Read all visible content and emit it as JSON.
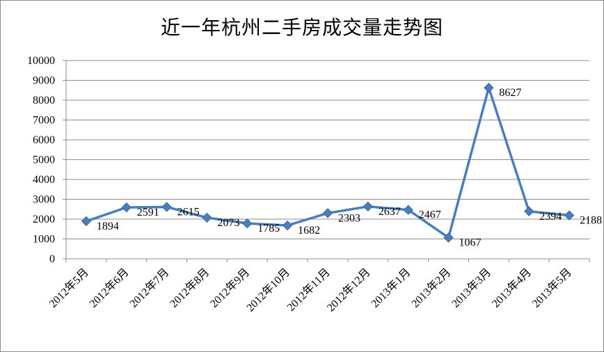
{
  "chart_data": {
    "type": "line",
    "title": "近一年杭州二手房成交量走势图",
    "categories": [
      "2012年5月",
      "2012年6月",
      "2012年7月",
      "2012年8月",
      "2012年9月",
      "2012年10月",
      "2012年11月",
      "2012年12月",
      "2013年1月",
      "2013年2月",
      "2013年3月",
      "2013年4月",
      "2013年5月"
    ],
    "series": [
      {
        "values": [
          1894,
          2591,
          2615,
          2073,
          1785,
          1682,
          2303,
          2637,
          2467,
          1067,
          8627,
          2394,
          2188
        ]
      }
    ],
    "ylim": [
      0,
      10000
    ],
    "yticks": [
      0,
      1000,
      2000,
      3000,
      4000,
      5000,
      6000,
      7000,
      8000,
      9000,
      10000
    ],
    "grid": true,
    "legend": "none",
    "line_color": "#4a7ebb",
    "marker": "diamond",
    "data_labels": true
  }
}
